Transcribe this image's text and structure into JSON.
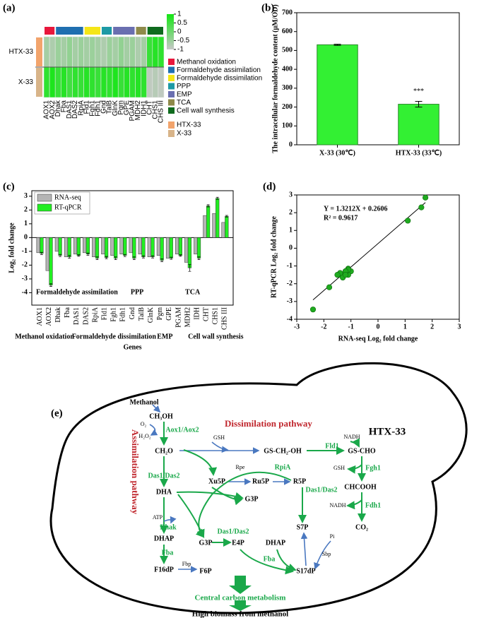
{
  "chart_data": [
    {
      "type": "heatmap",
      "panel": "(a)",
      "groups": [
        {
          "name": "Methanol oxidation",
          "color": "#e8173c",
          "columns": [
            "AOX1",
            "AOX2"
          ]
        },
        {
          "name": "Formaldehyde assimilation",
          "color": "#1f6fb0",
          "columns": [
            "Dhak",
            "Fba",
            "DAS1",
            "DAS2",
            "RpiA"
          ]
        },
        {
          "name": "Formaldehyde dissimilation",
          "color": "#f5e617",
          "columns": [
            "Fld1",
            "Fgh1",
            "Fdh1"
          ]
        },
        {
          "name": "PPP",
          "color": "#1d9aa5",
          "columns": [
            "Gnd",
            "TalB"
          ]
        },
        {
          "name": "EMP",
          "color": "#6a6fb0",
          "columns": [
            "GlnK",
            "Pgm",
            "GPE",
            "PGAM"
          ]
        },
        {
          "name": "TCA",
          "color": "#8f8a4a",
          "columns": [
            "MDH2",
            "IDH1"
          ]
        },
        {
          "name": "Cell wall synthesis",
          "color": "#0f6b1e",
          "columns": [
            "CHT",
            "CHS1",
            "CHS III"
          ]
        }
      ],
      "series": [
        {
          "name": "HTX-33",
          "color": "#f2a46c",
          "values": [
            -0.6,
            -0.7,
            -0.5,
            -0.6,
            -0.4,
            -0.6,
            -0.5,
            -0.6,
            -0.5,
            -0.6,
            -0.7,
            -0.5,
            -0.6,
            -0.4,
            -0.6,
            -0.5,
            -0.7,
            -0.6,
            0.6,
            0.8,
            0.7
          ]
        },
        {
          "name": "X-33",
          "color": "#d8b489",
          "values": [
            0.7,
            0.9,
            0.6,
            0.8,
            0.5,
            0.7,
            0.6,
            0.8,
            0.7,
            0.6,
            0.8,
            0.7,
            0.9,
            0.6,
            0.8,
            0.7,
            0.8,
            0.7,
            -0.9,
            -0.8,
            -0.9
          ]
        }
      ],
      "zlim": [
        -1,
        1
      ],
      "zticks": [
        1,
        0.5,
        0,
        -0.5,
        -1
      ],
      "colors": [
        "#c8c8c8",
        "#14e614"
      ]
    },
    {
      "type": "bar",
      "panel": "(b)",
      "categories": [
        "X-33 (30℃)",
        "HTX-33 (33℃)"
      ],
      "values": [
        530,
        215
      ],
      "errors": [
        3,
        15
      ],
      "annotation": "***",
      "color": "#33f033",
      "ylabel": "The intracellular formaldehyde content (μM/OD)",
      "ylim": [
        0,
        700
      ],
      "yticks": [
        0,
        100,
        200,
        300,
        400,
        500,
        600,
        700
      ]
    },
    {
      "type": "bar",
      "panel": "(c)",
      "groups": [
        {
          "name": "Methanol oxidation",
          "categories": [
            "AOX1",
            "AOX2"
          ]
        },
        {
          "name": "Formaldehyde assimilation",
          "categories": [
            "Dhak",
            "Fba",
            "DAS1",
            "DAS2",
            "RpiA"
          ]
        },
        {
          "name": "Formaldehyde dissimilation",
          "categories": [
            "Fld1",
            "Fgh1",
            "Fdh1"
          ]
        },
        {
          "name": "PPP",
          "categories": [
            "Gnd",
            "TalB"
          ]
        },
        {
          "name": "EMP",
          "categories": [
            "GlnK",
            "Pgm",
            "GPE",
            "PGAM"
          ]
        },
        {
          "name": "TCA",
          "categories": [
            "MDH2",
            "IDH"
          ]
        },
        {
          "name": "Cell wall synthesis",
          "categories": [
            "CHT",
            "CHS1",
            "CHS III"
          ]
        }
      ],
      "series": [
        {
          "name": "RNA-seq",
          "color": "#b4b4b4",
          "values": [
            -1.1,
            -2.4,
            -1.0,
            -1.4,
            -1.2,
            -1.1,
            -1.4,
            -1.2,
            -1.3,
            -1.2,
            -1.1,
            -1.2,
            -1.4,
            -1.3,
            -1.5,
            -1.2,
            -1.8,
            -1.2,
            1.6,
            1.75,
            1.1
          ]
        },
        {
          "name": "RT-qPCR",
          "color": "#22ee22",
          "values": [
            -1.15,
            -3.45,
            -1.3,
            -1.4,
            -1.3,
            -1.2,
            -1.5,
            -1.45,
            -1.5,
            -1.3,
            -1.5,
            -1.4,
            -1.4,
            -1.65,
            -1.5,
            -1.3,
            -2.2,
            -1.5,
            2.3,
            2.85,
            1.55
          ],
          "errors": [
            0.08,
            0.1,
            0.08,
            0.1,
            0.06,
            0.08,
            0.1,
            0.08,
            0.1,
            0.08,
            0.1,
            0.08,
            0.08,
            0.1,
            0.08,
            0.06,
            0.25,
            0.1,
            0.08,
            0.08,
            0.06
          ]
        }
      ],
      "xlabel": "Genes",
      "ylabel": "Log₂ fold change",
      "ylim": [
        -4.9,
        3.4
      ],
      "yticks": [
        -4,
        -3,
        -2,
        -1,
        0,
        1,
        2,
        3
      ]
    },
    {
      "type": "scatter",
      "panel": "(d)",
      "x": [
        -1.1,
        -2.4,
        -1.0,
        -1.4,
        -1.2,
        -1.1,
        -1.4,
        -1.2,
        -1.3,
        -1.2,
        -1.1,
        -1.2,
        -1.4,
        -1.3,
        -1.5,
        -1.2,
        -1.8,
        -1.2,
        1.6,
        1.75,
        1.1
      ],
      "values": [
        -1.15,
        -3.45,
        -1.3,
        -1.4,
        -1.3,
        -1.2,
        -1.5,
        -1.45,
        -1.5,
        -1.3,
        -1.5,
        -1.4,
        -1.4,
        -1.65,
        -1.5,
        -1.3,
        -2.2,
        -1.5,
        2.3,
        2.85,
        1.55
      ],
      "color": "#1faa1f",
      "fit": {
        "slope": 1.3212,
        "intercept": 0.2606,
        "label": "Y = 1.3212X + 0.2606"
      },
      "r2": {
        "value": 0.9617,
        "label": "R² = 0.9617"
      },
      "xlabel": "RNA-seq Log₂ fold change",
      "ylabel": "RT-qPCR Log₂ fold change",
      "xlim": [
        -3,
        3
      ],
      "xticks": [
        -3,
        -2,
        -1,
        0,
        1,
        2,
        3
      ],
      "ylim": [
        -4,
        3
      ],
      "yticks": [
        -4,
        -3,
        -2,
        -1,
        0,
        1,
        2,
        3
      ]
    }
  ],
  "diagram": {
    "panel": "(e)",
    "nodes": [
      "Methanol",
      "CH₃OH",
      "O₂",
      "H₂O₂",
      "Aox1/Aox2",
      "Dissimilation  pathway",
      "HTX-33",
      "CH₂O",
      "GSH",
      "GS-CH₂-OH",
      "NADH",
      "Fld1",
      "GS-CHO",
      "GSH",
      "Fgh1",
      "CHCOOH",
      "NADH",
      "Fdh1",
      "CO₂",
      "Assimilation pathway",
      "Das1/Das2",
      "Rpe",
      "RpiA",
      "Xu5P",
      "Ru5P",
      "R5P",
      "Das1/Das2",
      "DHA",
      "G3P",
      "ATP",
      "Dhak",
      "DHAP",
      "Das1/Das2",
      "S7P",
      "Pi",
      "G3P",
      "E4P",
      "DHAP",
      "Sbp",
      "Fba",
      "Fba",
      "F16dP",
      "Fbp",
      "F6P",
      "S17dP",
      "Central carbon metabolism",
      "High biomass from methanol"
    ]
  }
}
